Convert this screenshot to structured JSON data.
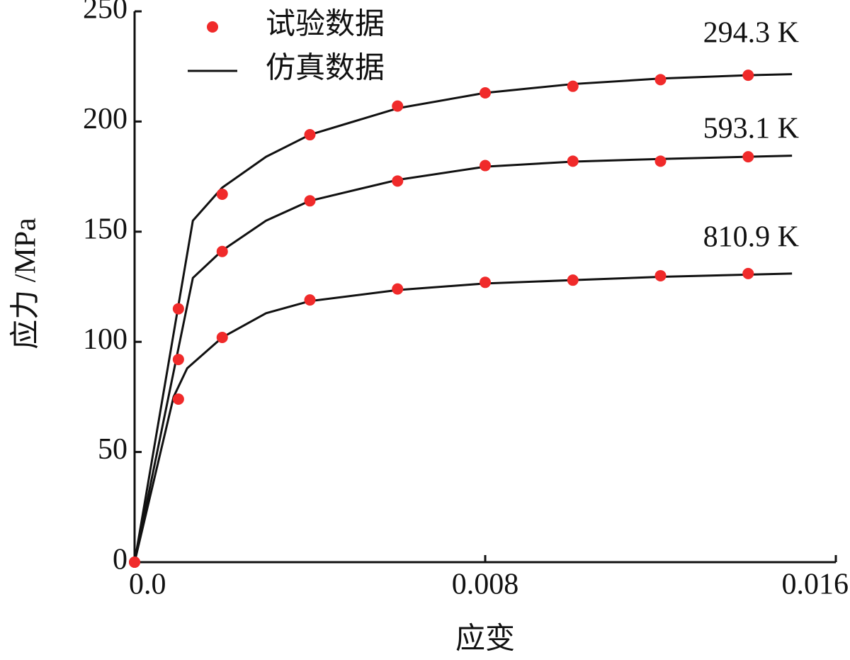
{
  "chart_data": {
    "type": "line",
    "xlabel": "应变",
    "ylabel": "应力 /MPa",
    "xlim": [
      0,
      0.016
    ],
    "ylim": [
      0,
      250
    ],
    "xticks": [
      {
        "value": 0,
        "label": "0.0"
      },
      0.008,
      0.016
    ],
    "yticks": [
      0,
      50,
      100,
      150,
      200,
      250
    ],
    "legend": {
      "experiment": "试验数据",
      "simulation": "仿真数据",
      "experiment_color": "#f02a2a",
      "simulation_color": "#111111"
    },
    "series": [
      {
        "name": "294.3 K",
        "experiment": {
          "x": [
            0,
            0.001,
            0.002,
            0.004,
            0.006,
            0.008,
            0.01,
            0.012,
            0.014
          ],
          "values": [
            0,
            115,
            167,
            194,
            207,
            213,
            216,
            219,
            221
          ]
        },
        "simulation": {
          "x": [
            0,
            0.00133,
            0.002,
            0.003,
            0.004,
            0.006,
            0.008,
            0.01,
            0.012,
            0.014,
            0.015
          ],
          "values": [
            0,
            155,
            170,
            184,
            194,
            206,
            213,
            217,
            219.5,
            221,
            221.5
          ]
        }
      },
      {
        "name": "593.1 K",
        "experiment": {
          "x": [
            0,
            0.001,
            0.002,
            0.004,
            0.006,
            0.008,
            0.01,
            0.012,
            0.014
          ],
          "values": [
            0,
            92,
            141,
            164,
            173,
            180,
            182,
            182,
            184
          ]
        },
        "simulation": {
          "x": [
            0,
            0.00133,
            0.002,
            0.003,
            0.004,
            0.006,
            0.008,
            0.01,
            0.012,
            0.014,
            0.015
          ],
          "values": [
            0,
            129,
            141.5,
            155,
            164,
            173.5,
            179.5,
            181.8,
            183,
            184,
            184.5
          ]
        }
      },
      {
        "name": "810.9 K",
        "experiment": {
          "x": [
            0,
            0.001,
            0.002,
            0.004,
            0.006,
            0.008,
            0.01,
            0.012,
            0.014
          ],
          "values": [
            0,
            74,
            102,
            119,
            124,
            127,
            128,
            130,
            131
          ]
        },
        "simulation": {
          "x": [
            0,
            0.00089,
            0.0012,
            0.002,
            0.003,
            0.004,
            0.006,
            0.008,
            0.01,
            0.012,
            0.014,
            0.015
          ],
          "values": [
            0,
            75,
            88,
            102,
            113,
            118.5,
            123.5,
            126.5,
            128,
            129.5,
            130.5,
            131
          ]
        }
      }
    ]
  }
}
